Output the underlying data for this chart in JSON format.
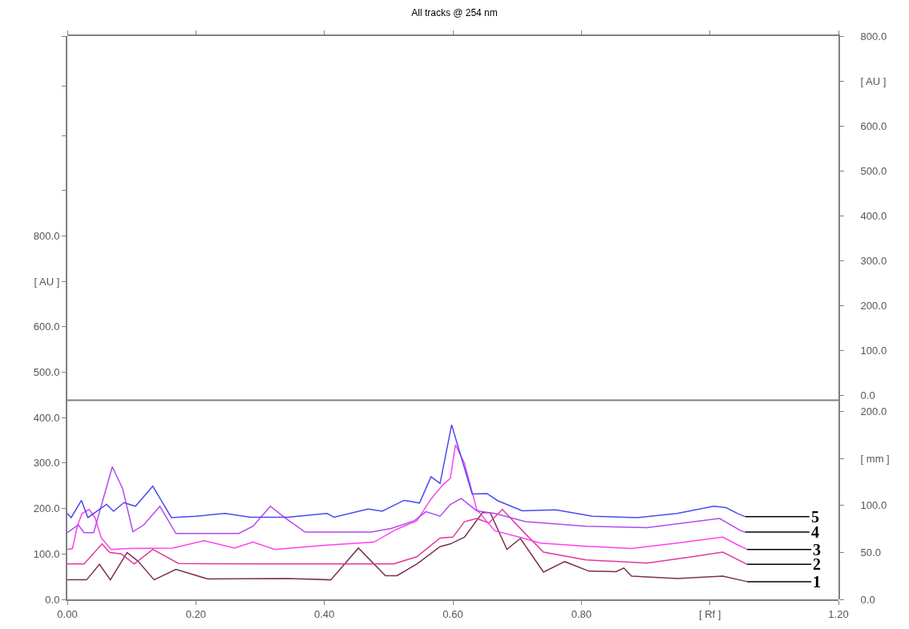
{
  "chart_data": {
    "type": "line",
    "title": "All tracks @ 254 nm",
    "xlim": [
      0,
      1.2
    ],
    "xticks": [
      {
        "value": 0,
        "label": "0.00"
      },
      {
        "value": 0.2,
        "label": "0.20"
      },
      {
        "value": 0.4,
        "label": "0.40"
      },
      {
        "value": 0.6,
        "label": "0.60"
      },
      {
        "value": 0.8,
        "label": "0.80"
      },
      {
        "value": 1.0,
        "label": "[ Rf ]"
      },
      {
        "value": 1.2,
        "label": "1.20"
      }
    ],
    "ylim": [
      0,
      1240
    ],
    "yticks": [
      {
        "value": 0,
        "label": "0.0"
      },
      {
        "value": 100,
        "label": "100.0"
      },
      {
        "value": 200,
        "label": "200.0"
      },
      {
        "value": 300,
        "label": "300.0"
      },
      {
        "value": 400,
        "label": "400.0"
      },
      {
        "value": 500,
        "label": "500.0"
      },
      {
        "value": 600,
        "label": "600.0"
      },
      {
        "value": 700,
        "label": "[ AU ]"
      },
      {
        "value": 800,
        "label": "800.0"
      },
      {
        "value": 900,
        "label": null
      },
      {
        "value": 1020,
        "label": null
      },
      {
        "value": 1130,
        "label": null
      },
      {
        "value": 1240,
        "label": null
      }
    ],
    "y2lim": [
      0,
      600
    ],
    "y2ticks": [
      {
        "value": 0,
        "label": "0.0"
      },
      {
        "value": 50,
        "label": "50.0"
      },
      {
        "value": 100,
        "label": "100.0"
      },
      {
        "value": 150,
        "label": "[ mm ]"
      },
      {
        "value": 200,
        "label": "200.0"
      }
    ],
    "y3lim": [
      -455,
      800
    ],
    "y3ticks": [
      {
        "value": 0,
        "label": "0.0"
      },
      {
        "value": 100,
        "label": "100.0"
      },
      {
        "value": 200,
        "label": "200.0"
      },
      {
        "value": 300,
        "label": "300.0"
      },
      {
        "value": 400,
        "label": "400.0"
      },
      {
        "value": 500,
        "label": "500.0"
      },
      {
        "value": 600,
        "label": "600.0"
      },
      {
        "value": 700,
        "label": "[ AU ]"
      },
      {
        "value": 800,
        "label": "800.0"
      }
    ],
    "ref_lines": [
      {
        "axis": "y2",
        "value": 212,
        "color": "#808080",
        "line_style": "solid"
      }
    ],
    "legend": false,
    "marker": "none",
    "line_style": "solid",
    "series": [
      {
        "name": "1",
        "color": "#7a3050",
        "x": [
          0,
          0.03,
          0.05,
          0.067,
          0.093,
          0.11,
          0.135,
          0.169,
          0.218,
          0.343,
          0.41,
          0.453,
          0.495,
          0.513,
          0.544,
          0.58,
          0.596,
          0.618,
          0.646,
          0.658,
          0.684,
          0.705,
          0.741,
          0.774,
          0.812,
          0.854,
          0.866,
          0.878,
          0.949,
          1.02,
          1.058
        ],
        "values": [
          43,
          43,
          77,
          43,
          103,
          84,
          43,
          66,
          45,
          46,
          43,
          113,
          52,
          52,
          78,
          116,
          122,
          137,
          191,
          191,
          110,
          134,
          60,
          83,
          62,
          61,
          69,
          51,
          46,
          51,
          39
        ]
      },
      {
        "name": "2",
        "color": "#e0389c",
        "x": [
          0,
          0.026,
          0.054,
          0.066,
          0.084,
          0.104,
          0.133,
          0.173,
          0.298,
          0.455,
          0.508,
          0.544,
          0.58,
          0.6,
          0.618,
          0.637,
          0.656,
          0.677,
          0.713,
          0.741,
          0.807,
          0.902,
          0.973,
          1.02,
          1.058
        ],
        "values": [
          78,
          78,
          122,
          103,
          100,
          78,
          110,
          79,
          78,
          78,
          78,
          94,
          135,
          137,
          171,
          178,
          168,
          198,
          144,
          104,
          87,
          80,
          94,
          104,
          77
        ]
      },
      {
        "name": "3",
        "color": "#ff40f0",
        "x": [
          0,
          0.008,
          0.016,
          0.023,
          0.034,
          0.043,
          0.053,
          0.068,
          0.097,
          0.164,
          0.213,
          0.26,
          0.289,
          0.323,
          0.401,
          0.477,
          0.512,
          0.544,
          0.566,
          0.585,
          0.596,
          0.604,
          0.618,
          0.637,
          0.665,
          0.703,
          0.736,
          0.807,
          0.878,
          0.949,
          1.02,
          1.043,
          1.058
        ],
        "values": [
          110,
          112,
          164,
          189,
          198,
          180,
          135,
          110,
          112,
          113,
          129,
          113,
          126,
          110,
          119,
          126,
          154,
          173,
          221,
          253,
          266,
          340,
          300,
          198,
          151,
          137,
          124,
          117,
          112,
          124,
          137,
          120,
          110
        ]
      },
      {
        "name": "4",
        "color": "#b04af0",
        "x": [
          0,
          0.017,
          0.026,
          0.041,
          0.07,
          0.086,
          0.102,
          0.119,
          0.144,
          0.169,
          0.267,
          0.289,
          0.316,
          0.338,
          0.37,
          0.473,
          0.504,
          0.54,
          0.558,
          0.58,
          0.596,
          0.613,
          0.637,
          0.665,
          0.713,
          0.807,
          0.902,
          1.015,
          1.048,
          1.055
        ],
        "values": [
          147,
          164,
          147,
          147,
          292,
          244,
          149,
          164,
          205,
          145,
          145,
          161,
          205,
          180,
          148,
          148,
          156,
          173,
          193,
          183,
          209,
          222,
          195,
          189,
          171,
          161,
          158,
          178,
          151,
          148
        ]
      },
      {
        "name": "5",
        "color": "#4a4af0",
        "x": [
          0,
          0.006,
          0.022,
          0.032,
          0.061,
          0.072,
          0.088,
          0.106,
          0.133,
          0.146,
          0.162,
          0.2,
          0.245,
          0.285,
          0.343,
          0.404,
          0.415,
          0.468,
          0.49,
          0.524,
          0.548,
          0.566,
          0.58,
          0.598,
          0.63,
          0.653,
          0.67,
          0.708,
          0.76,
          0.817,
          0.887,
          0.949,
          1.006,
          1.025,
          1.043,
          1.055
        ],
        "values": [
          189,
          180,
          218,
          180,
          209,
          194,
          213,
          205,
          249,
          218,
          180,
          183,
          189,
          181,
          181,
          189,
          181,
          199,
          194,
          218,
          212,
          270,
          255,
          384,
          232,
          233,
          217,
          195,
          197,
          183,
          180,
          189,
          205,
          202,
          189,
          182
        ]
      }
    ]
  }
}
